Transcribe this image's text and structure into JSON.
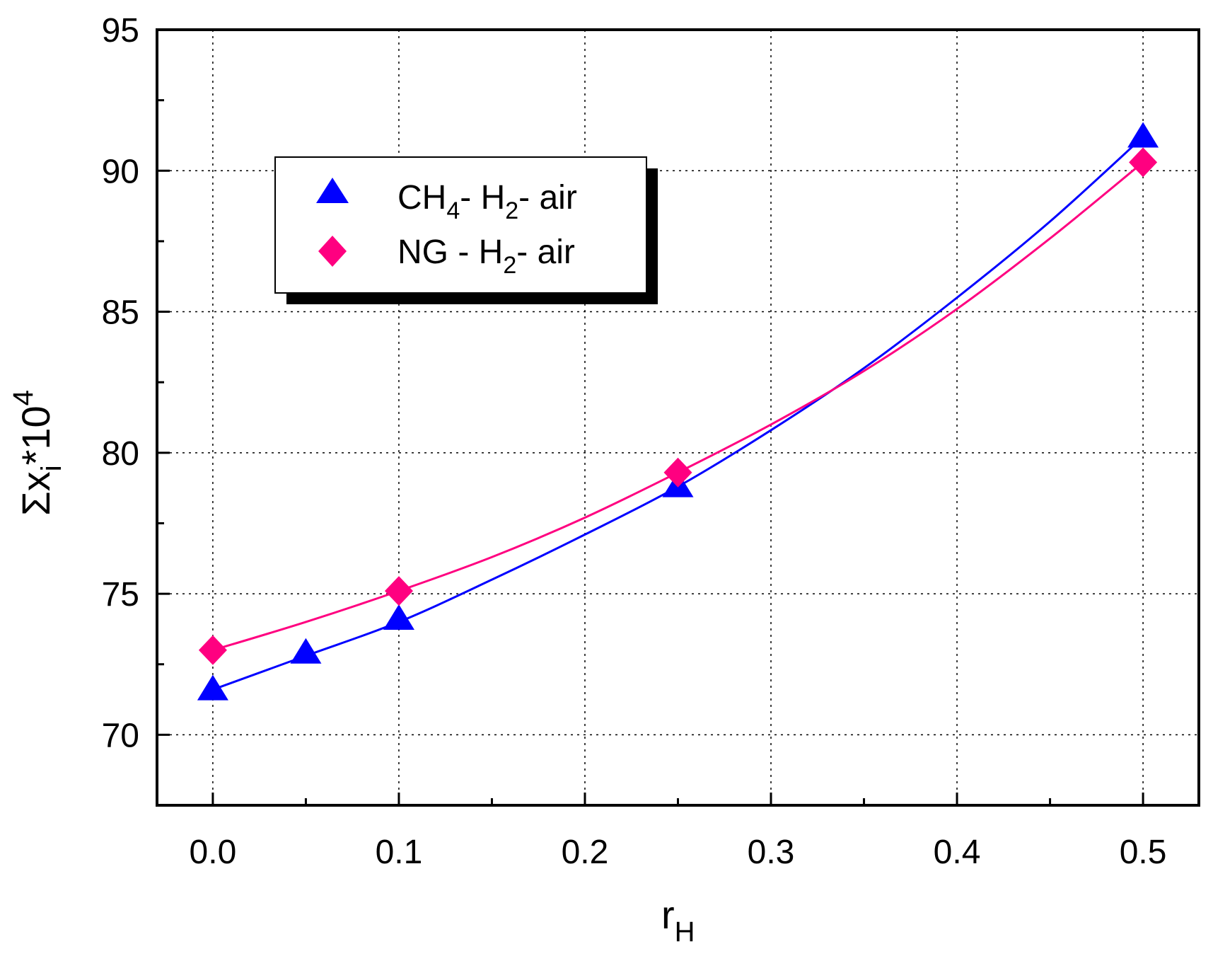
{
  "chart_data": {
    "type": "line",
    "xlabel": {
      "main": "r",
      "sub": "H"
    },
    "ylabel": {
      "prefix": "Σx",
      "sub": "i",
      "mid": "*10",
      "sup": "4"
    },
    "xlim": [
      -0.03,
      0.53
    ],
    "ylim": [
      67.5,
      95
    ],
    "x_ticks": [
      {
        "value": 0.0,
        "label": "0.0"
      },
      {
        "value": 0.1,
        "label": "0.1"
      },
      {
        "value": 0.2,
        "label": "0.2"
      },
      {
        "value": 0.3,
        "label": "0.3"
      },
      {
        "value": 0.4,
        "label": "0.4"
      },
      {
        "value": 0.5,
        "label": "0.5"
      }
    ],
    "y_ticks": [
      {
        "value": 70,
        "label": "70"
      },
      {
        "value": 75,
        "label": "75"
      },
      {
        "value": 80,
        "label": "80"
      },
      {
        "value": 85,
        "label": "85"
      },
      {
        "value": 90,
        "label": "90"
      },
      {
        "value": 95,
        "label": "95"
      }
    ],
    "grid": true,
    "legend_position": "top-left",
    "series": [
      {
        "legend": {
          "main": "CH",
          "sub": "4",
          "mid": "- H",
          "sub2": "2",
          "tail": "- air"
        },
        "marker": "triangle",
        "color": "#0000ff",
        "x": [
          0.0,
          0.05,
          0.1,
          0.25,
          0.5
        ],
        "y": [
          71.6,
          72.9,
          74.1,
          78.8,
          91.2
        ],
        "curve_x": [
          0.0,
          0.05,
          0.1,
          0.15,
          0.2,
          0.25,
          0.3,
          0.35,
          0.4,
          0.45,
          0.5
        ],
        "curve_y": [
          71.6,
          72.8,
          74.0,
          75.5,
          77.1,
          78.8,
          80.8,
          83.0,
          85.5,
          88.2,
          91.2
        ]
      },
      {
        "legend": {
          "main": "NG - H",
          "sub": "2",
          "tail": "- air"
        },
        "marker": "diamond",
        "color": "#ff0080",
        "x": [
          0.0,
          0.1,
          0.25,
          0.5
        ],
        "y": [
          73.0,
          75.1,
          79.3,
          90.3
        ],
        "curve_x": [
          0.0,
          0.05,
          0.1,
          0.15,
          0.2,
          0.25,
          0.3,
          0.35,
          0.4,
          0.45,
          0.5
        ],
        "curve_y": [
          73.0,
          74.0,
          75.1,
          76.3,
          77.7,
          79.3,
          81.0,
          82.9,
          85.1,
          87.6,
          90.3
        ]
      }
    ]
  }
}
